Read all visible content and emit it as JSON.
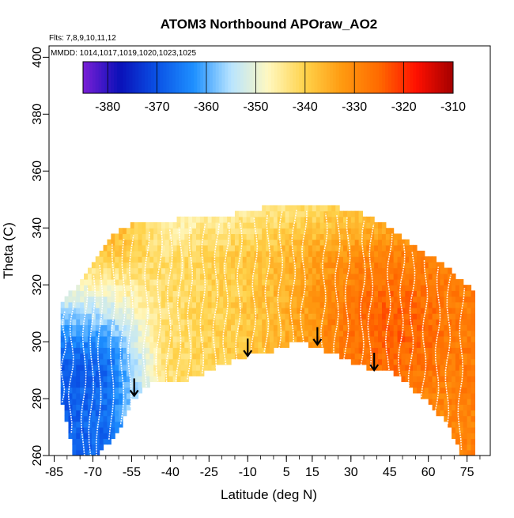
{
  "chart_data": {
    "type": "heatmap",
    "title": "ATOM3 Northbound APOraw_AO2",
    "subtitle_lines": [
      "Flts: 7,8,9,10,11,12",
      "MMDD: 1014,1017,1019,1020,1023,1025"
    ],
    "xlabel": "Latitude (deg N)",
    "ylabel": "Theta (C)",
    "xlim": [
      -87,
      84
    ],
    "ylim": [
      260,
      404
    ],
    "x_ticks": [
      -85,
      -70,
      -55,
      -40,
      -25,
      -10,
      5,
      15,
      30,
      45,
      60,
      75
    ],
    "x_tick_labels": [
      "-85",
      "-70",
      "-55",
      "-40",
      "-25",
      "-10",
      "5",
      "15",
      "30",
      "45",
      "60",
      "75"
    ],
    "y_ticks": [
      260,
      280,
      300,
      320,
      340,
      360,
      380,
      400
    ],
    "y_tick_labels": [
      "260",
      "280",
      "300",
      "320",
      "340",
      "360",
      "380",
      "400"
    ],
    "colorbar": {
      "range": [
        -385,
        -310
      ],
      "ticks": [
        -380,
        -370,
        -360,
        -350,
        -340,
        -330,
        -320,
        -310
      ],
      "tick_labels": [
        "-380",
        "-370",
        "-360",
        "-350",
        "-340",
        "-330",
        "-320",
        "-310"
      ],
      "colors": [
        "#7a1fd6",
        "#0a10b8",
        "#0a52e6",
        "#1e90ff",
        "#b8e4ff",
        "#fff8c0",
        "#ffd24a",
        "#ff9a10",
        "#ff6a00",
        "#ff1000",
        "#a30000"
      ]
    },
    "boundary_top": [
      [
        -83,
        311
      ],
      [
        -80,
        316
      ],
      [
        -75,
        321
      ],
      [
        -70,
        328
      ],
      [
        -63,
        338
      ],
      [
        -55,
        341
      ],
      [
        -45,
        342
      ],
      [
        -30,
        344
      ],
      [
        -15,
        345
      ],
      [
        -5,
        347
      ],
      [
        5,
        349
      ],
      [
        15,
        348
      ],
      [
        25,
        347
      ],
      [
        35,
        345
      ],
      [
        45,
        340
      ],
      [
        55,
        333
      ],
      [
        65,
        328
      ],
      [
        73,
        321
      ],
      [
        78,
        318
      ]
    ],
    "boundary_bottom": [
      [
        -83,
        282
      ],
      [
        -80,
        272
      ],
      [
        -77,
        260
      ],
      [
        -68,
        260
      ],
      [
        -60,
        269
      ],
      [
        -55,
        279
      ],
      [
        -48,
        285
      ],
      [
        -40,
        286
      ],
      [
        -35,
        286
      ],
      [
        -25,
        290
      ],
      [
        -10,
        295
      ],
      [
        0,
        297
      ],
      [
        10,
        300
      ],
      [
        20,
        297
      ],
      [
        30,
        293
      ],
      [
        40,
        290
      ],
      [
        45,
        290
      ],
      [
        52,
        285
      ],
      [
        60,
        279
      ],
      [
        68,
        270
      ],
      [
        73,
        260
      ],
      [
        78,
        260
      ]
    ],
    "warm_center_lat": 40,
    "warm_center_theta": 305,
    "arrows": [
      [
        -54,
        281
      ],
      [
        -10,
        295
      ],
      [
        17,
        299
      ],
      [
        39,
        290
      ]
    ],
    "flight_tracks": [
      -82,
      -79,
      -74,
      -71,
      -68,
      -63,
      -59,
      -56,
      -50,
      -45,
      -41,
      -37,
      -33,
      -28,
      -23,
      -19,
      -14,
      -8,
      -3,
      2,
      7,
      11,
      19,
      24,
      28,
      34,
      37,
      44,
      49,
      53,
      58,
      63,
      67,
      72
    ]
  }
}
